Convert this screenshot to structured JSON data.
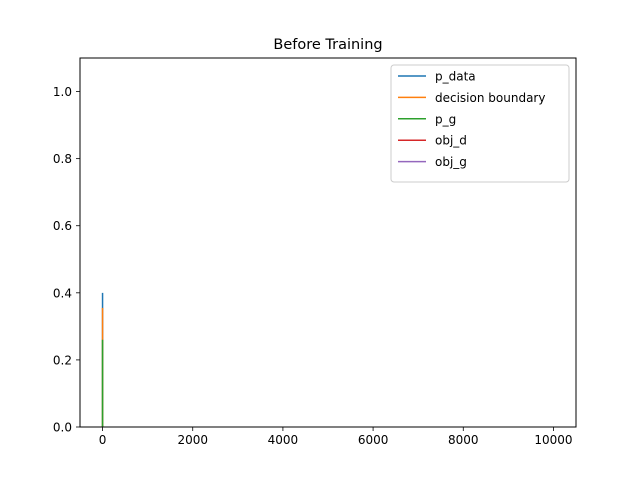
{
  "chart_data": {
    "type": "line",
    "title": "Before Training",
    "xlabel": "",
    "ylabel": "",
    "xlim": [
      -500,
      10500
    ],
    "ylim": [
      0,
      1.1
    ],
    "xticks": [
      0,
      2000,
      4000,
      6000,
      8000,
      10000
    ],
    "yticks": [
      0.0,
      0.2,
      0.4,
      0.6,
      0.8,
      1.0
    ],
    "xtick_labels": [
      "0",
      "2000",
      "4000",
      "6000",
      "8000",
      "10000"
    ],
    "ytick_labels": [
      "0.0",
      "0.2",
      "0.4",
      "0.6",
      "0.8",
      "1.0"
    ],
    "grid": false,
    "legend_position": "upper right",
    "series": [
      {
        "name": "p_data",
        "color": "#1f77b4",
        "x": [
          0,
          0
        ],
        "y": [
          0.0,
          0.4
        ]
      },
      {
        "name": "decision boundary",
        "color": "#ff7f0e",
        "x": [
          0,
          0
        ],
        "y": [
          0.0,
          0.355
        ]
      },
      {
        "name": "p_g",
        "color": "#2ca02c",
        "x": [
          0,
          0
        ],
        "y": [
          0.0,
          0.26
        ]
      },
      {
        "name": "obj_d",
        "color": "#d62728",
        "x": [
          0,
          0
        ],
        "y": [
          0.0,
          0.0
        ]
      },
      {
        "name": "obj_g",
        "color": "#9467bd",
        "x": [
          0,
          0
        ],
        "y": [
          0.0,
          0.0
        ]
      }
    ]
  }
}
